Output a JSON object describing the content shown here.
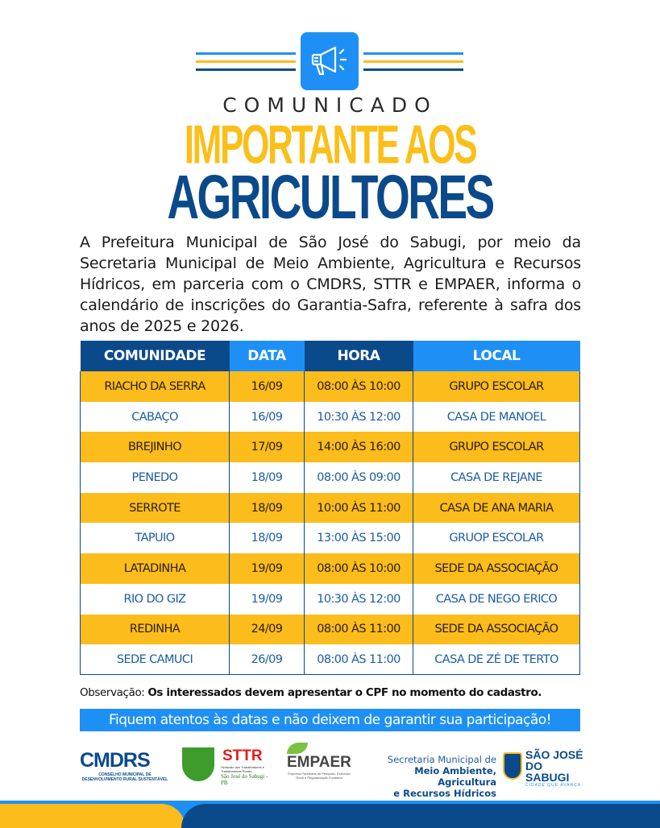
{
  "header": {
    "kicker": "COMUNICADO",
    "title_line1": "IMPORTANTE AOS",
    "title_line2": "AGRICULTORES",
    "icon": "megaphone-icon"
  },
  "intro": "A Prefeitura Municipal de São José do Sabugi, por meio da Secretaria Municipal de Meio Ambiente, Agricultura e Recursos Hídricos, em parceria com o CMDRS, STTR e EMPAER, informa o calendário de inscrições do Garantia-Safra, referente à safra dos anos de 2025 e 2026.",
  "table": {
    "headers": [
      "COMUNIDADE",
      "DATA",
      "HORA",
      "LOCAL"
    ],
    "rows": [
      [
        "RIACHO DA SERRA",
        "16/09",
        "08:00 ÀS 10:00",
        "GRUPO ESCOLAR"
      ],
      [
        "CABAÇO",
        "16/09",
        "10:30 ÀS 12:00",
        "CASA DE MANOEL"
      ],
      [
        "BREJINHO",
        "17/09",
        "14:00 ÀS 16:00",
        "GRUPO ESCOLAR"
      ],
      [
        "PENEDO",
        "18/09",
        "08:00 ÀS 09:00",
        "CASA DE REJANE"
      ],
      [
        "SERROTE",
        "18/09",
        "10:00 ÀS 11:00",
        "CASA DE ANA MARIA"
      ],
      [
        "TAPUIO",
        "18/09",
        "13:00 ÀS 15:00",
        "GRUOP ESCOLAR"
      ],
      [
        "LATADINHA",
        "19/09",
        "08:00 ÀS 10:00",
        "SEDE DA ASSOCIAÇÃO"
      ],
      [
        "RIO DO GIZ",
        "19/09",
        "10:30 ÀS 12:00",
        "CASA DE NEGO ERICO"
      ],
      [
        "REDINHA",
        "24/09",
        "08:00 ÀS 11:00",
        "SEDE DA ASSOCIAÇÃO"
      ],
      [
        "SEDE CAMUCI",
        "26/09",
        "08:00 ÀS 11:00",
        "CASA DE ZÉ DE TERTO"
      ]
    ]
  },
  "observation": {
    "label": "Observação:",
    "text": "Os interessados devem apresentar o CPF no momento do cadastro."
  },
  "banner": "Fiquem atentos às datas e não deixem de garantir sua participação!",
  "logos": {
    "cmdrs": {
      "name": "CMDRS",
      "sub": "CONSELHO MUNICIPAL DE DESENVOLVIMENTO RURAL SUSTENTÁVEL"
    },
    "sttr": {
      "name": "STTR",
      "sub": "Sindicato dos Trabalhadores e Trabalhadoras Rurais",
      "place": "São José do Sabugi - PB"
    },
    "empaer": {
      "name": "EMPAER",
      "sub": "Empresa Paraibana de Pesquisa, Extensão Rural e Regularização Fundiária"
    },
    "secretaria": {
      "line1": "Secretaria Municipal de",
      "line2": "Meio Ambiente, Agricultura",
      "line3": "e Recursos Hídricos"
    },
    "prefeitura": {
      "line1": "SÃO JOSÉ",
      "line2": "DO SABUGI",
      "slogan": "CIDADE QUE AVANÇA"
    }
  },
  "colors": {
    "yellow": "#fbbc1c",
    "dark_blue": "#0b4a8a",
    "light_blue": "#1e90f5"
  }
}
